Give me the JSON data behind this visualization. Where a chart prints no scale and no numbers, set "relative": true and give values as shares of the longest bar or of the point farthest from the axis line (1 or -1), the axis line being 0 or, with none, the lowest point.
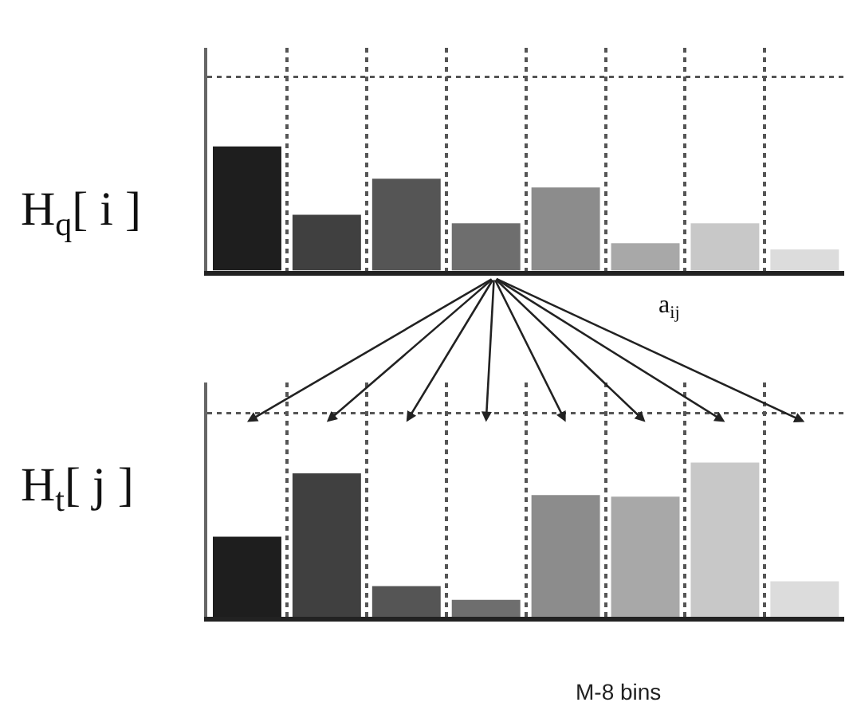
{
  "chart_data": [
    {
      "type": "bar",
      "ylabel": "H$_{q}$[ i ]",
      "categories": [
        null,
        null,
        null,
        null,
        null,
        null,
        null,
        null
      ],
      "relative": true,
      "tick_labels": false,
      "grid": "x",
      "values": [
        1,
        0.45,
        0.74,
        0.38,
        0.67,
        0.22,
        0.38,
        0.17
      ],
      "colors": [
        "#1e1e1e",
        "#404040",
        "#555555",
        "#6e6e6e",
        "#8c8c8c",
        "#a8a8a8",
        "#c8c8c8",
        "#dcdcdc"
      ],
      "ref_lines": [
        {
          "axis": "y",
          "value": 1.56,
          "line_style": "dotted",
          "color": "#555555"
        }
      ]
    },
    {
      "type": "bar",
      "ylabel": "H$_{t}$[ j ]",
      "categories": [
        null,
        null,
        null,
        null,
        null,
        null,
        null,
        null
      ],
      "relative": true,
      "tick_labels": false,
      "grid": "x",
      "values": [
        0.52,
        0.93,
        0.2,
        0.11,
        0.79,
        0.78,
        1,
        0.23
      ],
      "colors": [
        "#1e1e1e",
        "#404040",
        "#555555",
        "#6e6e6e",
        "#8c8c8c",
        "#a8a8a8",
        "#c8c8c8",
        "#dcdcdc"
      ],
      "ref_lines": [
        {
          "axis": "y",
          "value": 1.32,
          "line_style": "dotted",
          "color": "#555555"
        }
      ],
      "annotations": [
        "a$_{ij}$",
        "M-8 bins"
      ]
    }
  ]
}
